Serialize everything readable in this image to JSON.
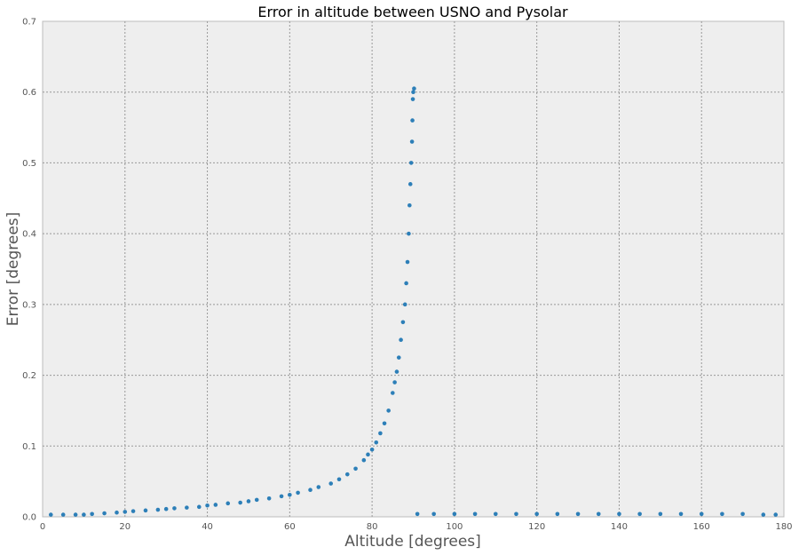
{
  "chart_data": {
    "type": "scatter",
    "title": "Error in altitude between USNO and Pysolar",
    "xlabel": "Altitude [degrees]",
    "ylabel": "Error [degrees]",
    "xlim": [
      0,
      180
    ],
    "ylim": [
      0,
      0.7
    ],
    "xticks": [
      0,
      20,
      40,
      60,
      80,
      100,
      120,
      140,
      160,
      180
    ],
    "yticks": [
      0.0,
      0.1,
      0.2,
      0.3,
      0.4,
      0.5,
      0.6,
      0.7
    ],
    "xtick_labels": [
      "0",
      "20",
      "40",
      "60",
      "80",
      "100",
      "120",
      "140",
      "160",
      "180"
    ],
    "ytick_labels": [
      "0.0",
      "0.1",
      "0.2",
      "0.3",
      "0.4",
      "0.5",
      "0.6",
      "0.7"
    ],
    "grid": true,
    "colors": {
      "marker": "#2d7fb8",
      "plot_bg": "#eeeeee",
      "grid": "#999999"
    },
    "series": [
      {
        "x": [
          2,
          5,
          8,
          10,
          12,
          15,
          18,
          20,
          22,
          25,
          28,
          30,
          32,
          35,
          38,
          40,
          42,
          45,
          48,
          50,
          52,
          55,
          58,
          60,
          62,
          65,
          67,
          70,
          72,
          74,
          76,
          78,
          79,
          80,
          81,
          82,
          83,
          84,
          85,
          85.5,
          86,
          86.5,
          87,
          87.5,
          88,
          88.3,
          88.6,
          88.9,
          89.1,
          89.3,
          89.5,
          89.7,
          89.8,
          89.9,
          90,
          90.2,
          91,
          95,
          100,
          105,
          110,
          115,
          120,
          125,
          130,
          135,
          140,
          145,
          150,
          155,
          160,
          165,
          170,
          175,
          178
        ],
        "y": [
          0.003,
          0.003,
          0.003,
          0.003,
          0.004,
          0.005,
          0.006,
          0.007,
          0.008,
          0.009,
          0.01,
          0.011,
          0.012,
          0.013,
          0.014,
          0.016,
          0.017,
          0.019,
          0.02,
          0.022,
          0.024,
          0.026,
          0.029,
          0.031,
          0.034,
          0.038,
          0.042,
          0.047,
          0.053,
          0.06,
          0.068,
          0.08,
          0.088,
          0.095,
          0.105,
          0.118,
          0.132,
          0.15,
          0.175,
          0.19,
          0.205,
          0.225,
          0.25,
          0.275,
          0.3,
          0.33,
          0.36,
          0.4,
          0.44,
          0.47,
          0.5,
          0.53,
          0.56,
          0.59,
          0.6,
          0.605,
          0.004,
          0.004,
          0.004,
          0.004,
          0.004,
          0.004,
          0.004,
          0.004,
          0.004,
          0.004,
          0.004,
          0.004,
          0.004,
          0.004,
          0.004,
          0.004,
          0.004,
          0.003,
          0.003
        ]
      }
    ]
  }
}
